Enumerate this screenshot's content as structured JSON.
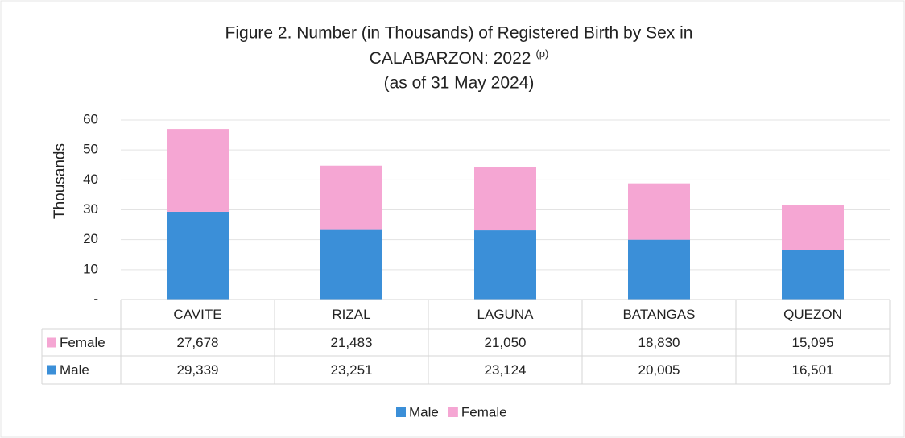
{
  "chart_data": {
    "type": "stacked_bar",
    "title": [
      "Figure 2. Number (in Thousands) of Registered Birth by Sex in",
      "CALABARZON: 2022",
      "(as of 31 May 2024)"
    ],
    "title_superscript": "(p)",
    "y_label": "Thousands",
    "categories": [
      "CAVITE",
      "RIZAL",
      "LAGUNA",
      "BATANGAS",
      "QUEZON"
    ],
    "series": [
      {
        "name": "Male",
        "color": "#3b8fd8",
        "values": [
          29.339,
          23.251,
          23.124,
          20.005,
          16.501
        ],
        "value_labels": [
          "29,339",
          "23,251",
          "23,124",
          "20,005",
          "16,501"
        ]
      },
      {
        "name": "Female",
        "color": "#f5a6d3",
        "values": [
          27.678,
          21.483,
          21.05,
          18.83,
          15.095
        ],
        "value_labels": [
          "27,678",
          "21,483",
          "21,050",
          "18,830",
          "15,095"
        ]
      }
    ],
    "ylim": [
      0,
      60
    ],
    "yticks": [
      {
        "value": 0,
        "label": "-"
      },
      10,
      20,
      30,
      40,
      50,
      60
    ],
    "grid": true,
    "legend": "bottom"
  }
}
